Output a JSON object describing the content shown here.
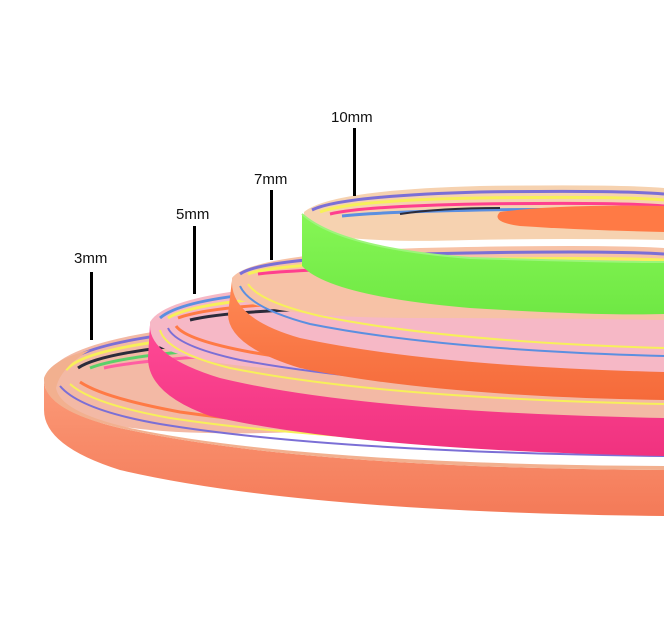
{
  "strip_labels": [
    {
      "id": "3mm",
      "text": "3mm"
    },
    {
      "id": "5mm",
      "text": "5mm"
    },
    {
      "id": "7mm",
      "text": "7mm"
    },
    {
      "id": "10mm",
      "text": "10mm"
    }
  ],
  "colors": {
    "background": "#ffffff",
    "neon_green": "#7cf24c",
    "neon_orange": "#ff7a45",
    "neon_pink": "#ff3f8e",
    "salmon": "#f98a6a",
    "yellow": "#f7f05a",
    "purple": "#7b6fd6",
    "blue": "#5b8fe0",
    "dark": "#2b2b3a",
    "tick": "#000000"
  }
}
